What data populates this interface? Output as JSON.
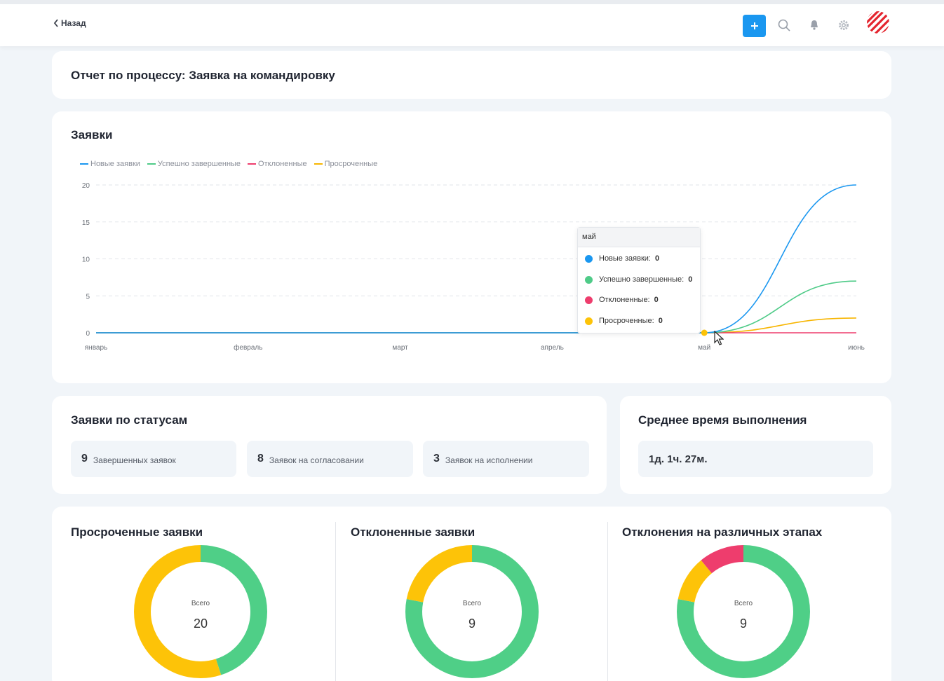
{
  "header": {
    "back_label": "Назад",
    "icons": [
      "plus-icon",
      "search-icon",
      "bell-icon",
      "gear-icon"
    ],
    "accent_color": "#1a97f0"
  },
  "report": {
    "title": "Отчет по процессу: Заявка на командировку"
  },
  "requests_chart": {
    "title": "Заявки",
    "tooltip": {
      "month": "май",
      "rows": [
        {
          "label": "Новые заявки:",
          "value": "0"
        },
        {
          "label": "Успешно завершенные:",
          "value": "0"
        },
        {
          "label": "Отклоненные:",
          "value": "0"
        },
        {
          "label": "Просроченные:",
          "value": "0"
        }
      ]
    }
  },
  "chart_data": {
    "type": "line",
    "title": "Заявки",
    "categories": [
      "январь",
      "февраль",
      "март",
      "апрель",
      "май",
      "июнь"
    ],
    "y_ticks": [
      "0",
      "5",
      "10",
      "15",
      "20"
    ],
    "ylim": [
      0,
      20
    ],
    "grid": true,
    "legend_position": "top-left",
    "series": [
      {
        "name": "Новые заявки",
        "color": "#1a97f0",
        "values": [
          0,
          0,
          0,
          0,
          0,
          20
        ]
      },
      {
        "name": "Успешно завершенные",
        "color": "#4fcb88",
        "values": [
          0,
          0,
          0,
          0,
          0,
          7
        ]
      },
      {
        "name": "Отклоненные",
        "color": "#ee3d6d",
        "values": [
          0,
          0,
          0,
          0,
          0,
          0
        ]
      },
      {
        "name": "Просроченные",
        "color": "#f7b500",
        "values": [
          0,
          0,
          0,
          0,
          0,
          2
        ]
      }
    ]
  },
  "status": {
    "title": "Заявки по статусам",
    "items": [
      {
        "value": "9",
        "label": "Завершенных заявок"
      },
      {
        "value": "8",
        "label": "Заявок на согласовании"
      },
      {
        "value": "3",
        "label": "Заявок на исполнении"
      }
    ]
  },
  "avg_time": {
    "title": "Среднее время выполнения",
    "value": "1д. 1ч. 27м."
  },
  "donuts": [
    {
      "title": "Просроченные заявки",
      "center_label": "Всего",
      "total": "20",
      "segments": [
        {
          "color": "#4fcf87",
          "fraction": 0.45
        },
        {
          "color": "#fdc308",
          "fraction": 0.55
        }
      ]
    },
    {
      "title": "Отклоненные заявки",
      "center_label": "Всего",
      "total": "9",
      "segments": [
        {
          "color": "#4fcf87",
          "fraction": 0.78
        },
        {
          "color": "#fdc308",
          "fraction": 0.22
        }
      ]
    },
    {
      "title": "Отклонения на различных этапах",
      "center_label": "Всего",
      "total": "9",
      "segments": [
        {
          "color": "#4fcf87",
          "fraction": 0.78
        },
        {
          "color": "#fdc308",
          "fraction": 0.11
        },
        {
          "color": "#ee3d6d",
          "fraction": 0.11
        }
      ]
    }
  ]
}
